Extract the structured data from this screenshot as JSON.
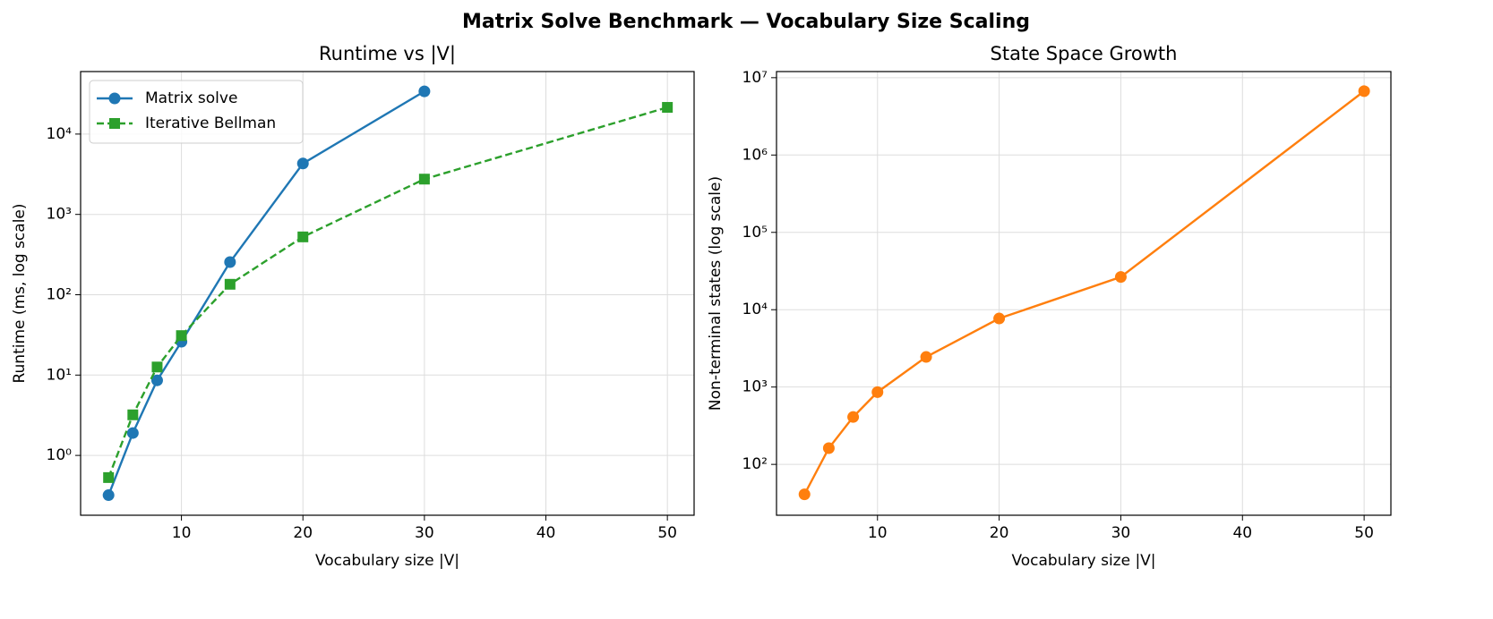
{
  "title": "Matrix Solve Benchmark — Vocabulary Size Scaling",
  "chart_data": [
    {
      "type": "line",
      "title": "Runtime vs |V|",
      "x_label": "Vocabulary size |V|",
      "y_label": "Runtime (ms, log scale)",
      "x": [
        4,
        6,
        8,
        10,
        14,
        20,
        30,
        50
      ],
      "series": [
        {
          "name": "Matrix solve",
          "color": "#1f77b4",
          "marker": "circle",
          "linestyle": "solid",
          "values": [
            0.32,
            1.9,
            8.6,
            26,
            255,
            4300,
            34000,
            null
          ]
        },
        {
          "name": "Iterative Bellman",
          "color": "#2ca02c",
          "marker": "square",
          "linestyle": "dashed",
          "values": [
            0.53,
            3.2,
            12.6,
            31,
            135,
            525,
            2750,
            21500
          ]
        }
      ],
      "xlim": [
        1.7,
        52.2
      ],
      "xticks": [
        10,
        20,
        30,
        40,
        50
      ],
      "ylim": [
        0.18,
        60000
      ],
      "yscale": "log",
      "yticks": [
        {
          "value": 1,
          "label": "10⁰"
        },
        {
          "value": 10,
          "label": "10¹"
        },
        {
          "value": 100,
          "label": "10²"
        },
        {
          "value": 1000,
          "label": "10³"
        },
        {
          "value": 10000,
          "label": "10⁴"
        }
      ],
      "grid": true,
      "legend": "upper left"
    },
    {
      "type": "line",
      "title": "State Space Growth",
      "x_label": "Vocabulary size |V|",
      "y_label": "Non-terminal states (log scale)",
      "x": [
        4,
        6,
        8,
        10,
        14,
        20,
        30,
        50
      ],
      "series": [
        {
          "color": "#ff7f0e",
          "marker": "circle",
          "linestyle": "solid",
          "values": [
            41,
            162,
            410,
            860,
            2450,
            7700,
            26500,
            6700000
          ]
        }
      ],
      "xlim": [
        1.7,
        52.2
      ],
      "xticks": [
        10,
        20,
        30,
        40,
        50
      ],
      "ylim": [
        22,
        12000000
      ],
      "yscale": "log",
      "yticks": [
        {
          "value": 100,
          "label": "10²"
        },
        {
          "value": 1000,
          "label": "10³"
        },
        {
          "value": 10000,
          "label": "10⁴"
        },
        {
          "value": 100000,
          "label": "10⁵"
        },
        {
          "value": 1000000,
          "label": "10⁶"
        },
        {
          "value": 10000000,
          "label": "10⁷"
        }
      ],
      "grid": true
    }
  ]
}
